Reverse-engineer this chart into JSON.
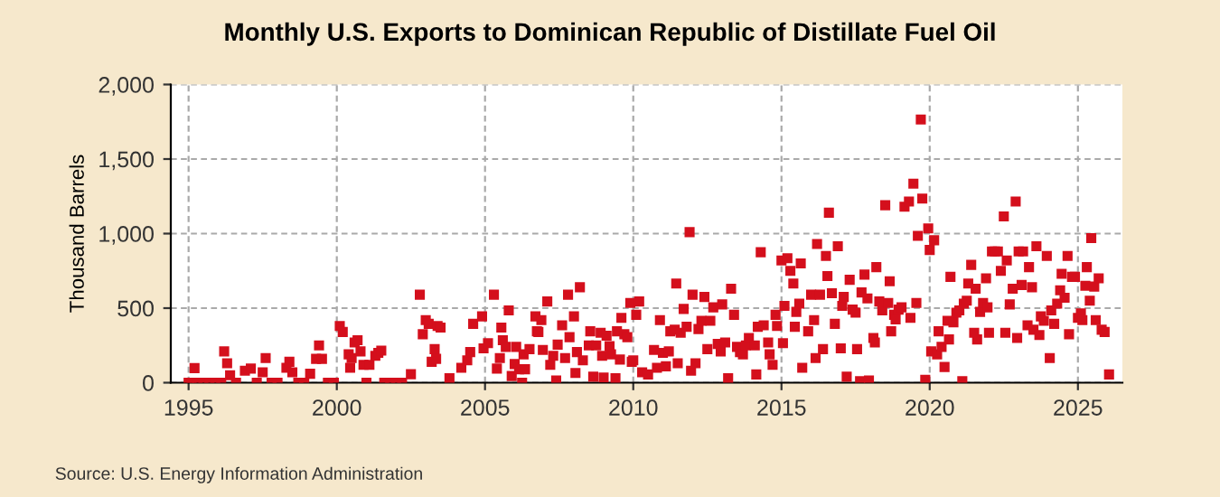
{
  "chart_data": {
    "type": "scatter",
    "title": "Monthly U.S. Exports to Dominican Republic of Distillate Fuel Oil",
    "ylabel": "Thousand Barrels",
    "annotations": [
      "Source: U.S. Energy Information Administration"
    ],
    "xlim": [
      1994.4,
      2026.5
    ],
    "xticks": [
      1995,
      2000,
      2005,
      2010,
      2015,
      2020,
      2025
    ],
    "ylim": [
      0,
      2000
    ],
    "yticks": [
      0,
      {
        "value": 500,
        "label": "500"
      },
      {
        "value": 1000,
        "label": "1,000"
      },
      {
        "value": 1500,
        "label": "1,500"
      },
      {
        "value": 2000,
        "label": "2,000"
      }
    ],
    "grid": true,
    "marker": "square",
    "series": [
      {
        "color": "#d40f1c",
        "x": [
          1995.0,
          1995.1,
          1995.2,
          1995.3,
          1995.5,
          1995.7,
          1995.9,
          1996.1,
          1996.2,
          1996.3,
          1996.4,
          1996.6,
          1996.9,
          1997.1,
          1997.3,
          1997.5,
          1997.6,
          1997.8,
          1998.0,
          1998.3,
          1998.4,
          1998.5,
          1998.7,
          1998.9,
          1999.1,
          1999.3,
          1999.4,
          1999.5,
          1999.7,
          1999.9,
          2000.1,
          2000.2,
          2000.4,
          2000.45,
          2000.5,
          2000.6,
          2000.7,
          2000.8,
          2000.9,
          2001.0,
          2001.1,
          2001.3,
          2001.4,
          2001.5,
          2001.6,
          2001.8,
          2002.0,
          2002.2,
          2002.5,
          2002.8,
          2002.9,
          2003.0,
          2003.1,
          2003.2,
          2003.3,
          2003.35,
          2003.4,
          2003.5,
          2003.8,
          2004.2,
          2004.4,
          2004.5,
          2004.6,
          2004.9,
          2004.95,
          2005.1,
          2005.3,
          2005.4,
          2005.5,
          2005.55,
          2005.6,
          2005.7,
          2005.8,
          2005.9,
          2006.0,
          2006.05,
          2006.15,
          2006.25,
          2006.3,
          2006.35,
          2006.5,
          2006.7,
          2006.75,
          2006.8,
          2006.9,
          2006.95,
          2007.1,
          2007.2,
          2007.3,
          2007.4,
          2007.45,
          2007.6,
          2007.7,
          2007.8,
          2007.85,
          2008.0,
          2008.05,
          2008.1,
          2008.2,
          2008.3,
          2008.5,
          2008.55,
          2008.65,
          2008.75,
          2008.9,
          2008.95,
          2009.0,
          2009.1,
          2009.2,
          2009.25,
          2009.4,
          2009.45,
          2009.55,
          2009.6,
          2009.7,
          2009.8,
          2009.9,
          2009.95,
          2010.0,
          2010.1,
          2010.2,
          2010.3,
          2010.5,
          2010.7,
          2010.8,
          2010.9,
          2011.0,
          2011.1,
          2011.2,
          2011.25,
          2011.4,
          2011.45,
          2011.5,
          2011.6,
          2011.7,
          2011.8,
          2011.9,
          2011.95,
          2012.0,
          2012.1,
          2012.2,
          2012.3,
          2012.4,
          2012.5,
          2012.6,
          2012.7,
          2012.85,
          2012.95,
          2013.0,
          2013.1,
          2013.2,
          2013.3,
          2013.4,
          2013.5,
          2013.6,
          2013.7,
          2013.8,
          2013.9,
          2014.1,
          2014.15,
          2014.2,
          2014.3,
          2014.4,
          2014.55,
          2014.6,
          2014.7,
          2014.8,
          2014.85,
          2015.0,
          2015.05,
          2015.1,
          2015.2,
          2015.3,
          2015.4,
          2015.45,
          2015.5,
          2015.6,
          2015.65,
          2015.7,
          2015.9,
          2016.0,
          2016.1,
          2016.15,
          2016.2,
          2016.3,
          2016.4,
          2016.5,
          2016.55,
          2016.6,
          2016.7,
          2016.8,
          2016.9,
          2017.0,
          2017.05,
          2017.1,
          2017.2,
          2017.3,
          2017.4,
          2017.5,
          2017.55,
          2017.65,
          2017.7,
          2017.8,
          2017.9,
          2017.95,
          2018.1,
          2018.15,
          2018.2,
          2018.3,
          2018.4,
          2018.5,
          2018.6,
          2018.65,
          2018.7,
          2018.8,
          2018.85,
          2018.95,
          2019.05,
          2019.15,
          2019.3,
          2019.35,
          2019.45,
          2019.55,
          2019.6,
          2019.7,
          2019.75,
          2019.85,
          2019.95,
          2020.0,
          2020.05,
          2020.15,
          2020.25,
          2020.3,
          2020.4,
          2020.5,
          2020.6,
          2020.65,
          2020.7,
          2020.8,
          2020.9,
          2021.0,
          2021.1,
          2021.15,
          2021.25,
          2021.3,
          2021.4,
          2021.5,
          2021.55,
          2021.6,
          2021.7,
          2021.8,
          2021.9,
          2021.95,
          2022.0,
          2022.1,
          2022.2,
          2022.3,
          2022.4,
          2022.5,
          2022.55,
          2022.6,
          2022.7,
          2022.8,
          2022.9,
          2022.95,
          2023.0,
          2023.1,
          2023.15,
          2023.3,
          2023.35,
          2023.45,
          2023.5,
          2023.6,
          2023.7,
          2023.75,
          2023.85,
          2023.95,
          2024.05,
          2024.1,
          2024.2,
          2024.3,
          2024.4,
          2024.45,
          2024.55,
          2024.65,
          2024.7,
          2024.8,
          2024.9,
          2025.0,
          2025.1,
          2025.15,
          2025.25,
          2025.3,
          2025.4,
          2025.45,
          2025.55,
          2025.6,
          2025.7,
          2025.8,
          2025.9,
          2026.05
        ],
        "values": [
          0,
          0,
          98,
          0,
          0,
          0,
          0,
          0,
          210,
          130,
          50,
          0,
          80,
          95,
          0,
          70,
          165,
          0,
          0,
          100,
          140,
          70,
          0,
          0,
          60,
          160,
          250,
          160,
          0,
          0,
          380,
          340,
          190,
          100,
          165,
          270,
          285,
          210,
          120,
          0,
          120,
          180,
          200,
          215,
          0,
          0,
          0,
          0,
          57,
          590,
          325,
          420,
          395,
          140,
          225,
          160,
          380,
          370,
          30,
          100,
          150,
          205,
          395,
          445,
          230,
          265,
          590,
          95,
          165,
          370,
          285,
          240,
          485,
          45,
          125,
          240,
          90,
          0,
          190,
          90,
          225,
          445,
          345,
          340,
          420,
          220,
          545,
          120,
          180,
          15,
          255,
          385,
          165,
          590,
          305,
          445,
          65,
          205,
          640,
          150,
          250,
          345,
          40,
          250,
          335,
          180,
          35,
          315,
          245,
          190,
          30,
          345,
          155,
          435,
          325,
          305,
          535,
          140,
          150,
          455,
          545,
          70,
          55,
          220,
          100,
          420,
          200,
          110,
          210,
          345,
          355,
          665,
          130,
          335,
          495,
          375,
          1010,
          80,
          590,
          130,
          360,
          415,
          575,
          225,
          415,
          505,
          260,
          210,
          525,
          270,
          30,
          630,
          455,
          240,
          205,
          190,
          250,
          300,
          250,
          55,
          375,
          875,
          385,
          270,
          190,
          120,
          455,
          380,
          820,
          265,
          515,
          835,
          750,
          665,
          375,
          475,
          530,
          800,
          100,
          345,
          590,
          420,
          165,
          930,
          590,
          225,
          850,
          715,
          1140,
          600,
          395,
          915,
          230,
          515,
          575,
          40,
          690,
          490,
          470,
          225,
          10,
          605,
          725,
          565,
          15,
          300,
          270,
          775,
          545,
          485,
          1190,
          535,
          680,
          345,
          455,
          425,
          490,
          505,
          1180,
          1215,
          435,
          1335,
          535,
          985,
          1765,
          1235,
          20,
          1035,
          890,
          210,
          955,
          190,
          345,
          240,
          105,
          415,
          290,
          710,
          405,
          470,
          485,
          10,
          530,
          550,
          665,
          790,
          335,
          630,
          290,
          475,
          535,
          700,
          505,
          335,
          880,
          880,
          880,
          750,
          1115,
          335,
          820,
          525,
          630,
          1215,
          300,
          880,
          655,
          880,
          385,
          775,
          640,
          355,
          915,
          320,
          445,
          415,
          850,
          165,
          485,
          395,
          530,
          620,
          730,
          570,
          850,
          325,
          710,
          710,
          435,
          465,
          420,
          650,
          775,
          550,
          970,
          645,
          420,
          700,
          355,
          340,
          55
        ]
      }
    ]
  }
}
